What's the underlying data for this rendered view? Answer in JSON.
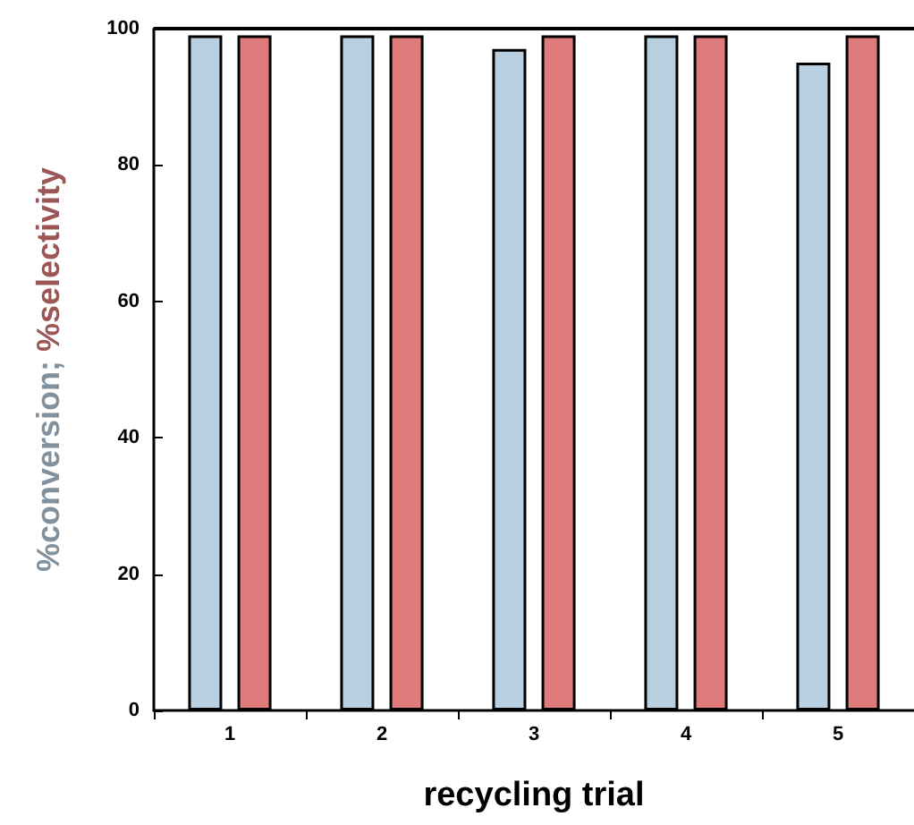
{
  "chart_data": {
    "type": "bar",
    "xlabel": "recycling trial",
    "ylabel": "%conversion; %selectivity",
    "categories": [
      "1",
      "2",
      "3",
      "4",
      "5"
    ],
    "series": [
      {
        "color": "#b8cfe0",
        "values": [
          99,
          99,
          97,
          99,
          95
        ]
      },
      {
        "color": "#e07b7b",
        "values": [
          99,
          99,
          99,
          99,
          99
        ]
      }
    ],
    "ylim": [
      0,
      100
    ],
    "yticks": [
      0,
      20,
      40,
      60,
      80,
      100
    ],
    "grid": false
  }
}
